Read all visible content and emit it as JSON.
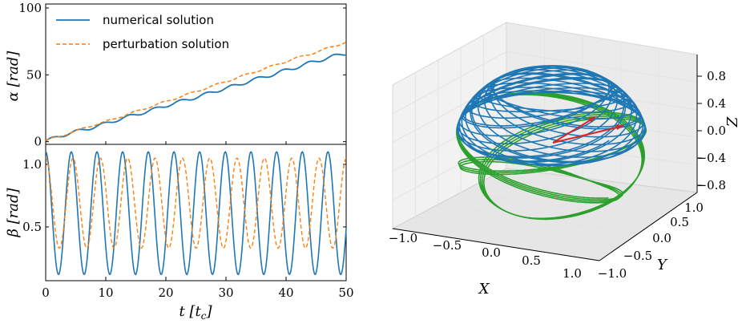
{
  "colors": {
    "numerical": "#1f77b4",
    "perturbation": "#ff7f0e",
    "upper_hemisphere": "#1f77b4",
    "lower_hemisphere": "#2ca02c",
    "arrow": "#d62728",
    "pane": "#f2f2f2",
    "grid": "#e3e3e3"
  },
  "chart_data": [
    {
      "type": "line",
      "panel": "top-left",
      "ylabel": "α [rad]",
      "xlim": [
        0,
        50
      ],
      "ylim": [
        -2,
        103
      ],
      "yticks": [
        0,
        50,
        100
      ],
      "ytick_labels": [
        "0",
        "50",
        "100"
      ],
      "legend": {
        "placement": "top-left",
        "entries": [
          "numerical solution",
          "perturbation solution"
        ]
      },
      "series": [
        {
          "name": "numerical solution",
          "style": "solid",
          "x": [
            0,
            2,
            4,
            6,
            8,
            10,
            12,
            14,
            16,
            18,
            20,
            22,
            24,
            26,
            28,
            30,
            32,
            34,
            36,
            38,
            40,
            42,
            44,
            46,
            48,
            50
          ],
          "y": [
            0.5,
            3.5,
            6.5,
            8.5,
            11,
            13.5,
            16.5,
            19,
            21.5,
            24,
            27,
            29.5,
            32,
            34.5,
            37.5,
            40,
            42.5,
            45.5,
            48,
            50.5,
            53.5,
            56,
            59,
            61.5,
            64,
            66
          ]
        },
        {
          "name": "perturbation solution",
          "style": "dashed",
          "x": [
            0,
            2,
            4,
            6,
            8,
            10,
            12,
            14,
            16,
            18,
            20,
            22,
            24,
            26,
            28,
            30,
            32,
            34,
            36,
            38,
            40,
            42,
            44,
            46,
            48,
            50
          ],
          "y": [
            1,
            3.5,
            6.5,
            9.5,
            12.5,
            15,
            18,
            21,
            24,
            27,
            30,
            33,
            36,
            39,
            42,
            45,
            48,
            51,
            54,
            57,
            60,
            63,
            65.5,
            68.5,
            71.5,
            74.5
          ]
        }
      ]
    },
    {
      "type": "line",
      "panel": "bottom-left",
      "xlabel": "t [t_c]",
      "ylabel": "β [rad]",
      "xlim": [
        0,
        50
      ],
      "ylim": [
        0.07,
        1.16
      ],
      "xticks": [
        0,
        10,
        20,
        30,
        40,
        50
      ],
      "xtick_labels": [
        "0",
        "10",
        "20",
        "30",
        "40",
        "50"
      ],
      "yticks": [
        0.5,
        1.0
      ],
      "ytick_labels": [
        "0.5",
        "1.0"
      ],
      "series": [
        {
          "name": "numerical solution",
          "style": "solid",
          "min": 0.12,
          "max": 1.1,
          "period": 4.27,
          "phase_peak_t": 0
        },
        {
          "name": "perturbation solution",
          "style": "dashed",
          "min": 0.33,
          "max": 1.05,
          "period": 4.55,
          "phase_peak_t": 0
        }
      ]
    },
    {
      "type": "line",
      "panel": "right-3d",
      "subtype": "3d-trajectory",
      "xlabel": "X",
      "ylabel": "Y",
      "zlabel": "Z",
      "xlim": [
        -1.0,
        1.0
      ],
      "ylim": [
        -1.0,
        1.0
      ],
      "zlim": [
        -0.8,
        0.8
      ],
      "xtick_labels": [
        "−1.0",
        "−0.5",
        "0.0",
        "0.5",
        "1.0"
      ],
      "ytick_labels": [
        "1.0",
        "0.5",
        "0.0",
        "−0.5",
        "−1.0"
      ],
      "ztick_labels": [
        "0.8",
        "0.4",
        "0.0",
        "−0.4",
        "−0.8"
      ],
      "series": [
        {
          "name": "upper cap",
          "latitude_range": [
            0.2,
            0.8
          ],
          "color_key": "upper_hemisphere"
        },
        {
          "name": "lower sphere",
          "latitude_range": [
            -0.8,
            0.25
          ],
          "color_key": "lower_hemisphere"
        }
      ]
    }
  ]
}
